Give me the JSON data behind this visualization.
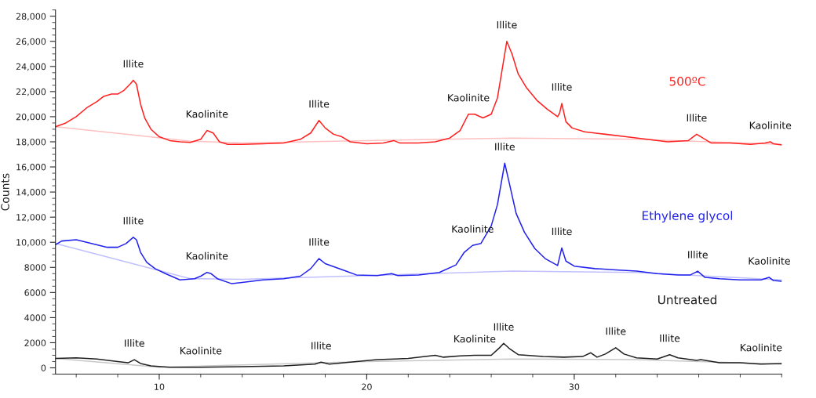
{
  "chart_data": {
    "type": "line",
    "ylabel": "Counts",
    "xlim": [
      5,
      40
    ],
    "xticks": [
      10,
      20,
      30
    ],
    "ylim": [
      -500,
      28500
    ],
    "yticks": [
      0,
      2000,
      4000,
      6000,
      8000,
      {
        "value": 10000,
        "label": "10,000"
      },
      {
        "value": 12000,
        "label": "12,000"
      },
      {
        "value": 14000,
        "label": "14,000"
      },
      {
        "value": 16000,
        "label": "16,000"
      },
      {
        "value": 18000,
        "label": "18,000"
      },
      {
        "value": 20000,
        "label": "20,000"
      },
      {
        "value": 22000,
        "label": "22,000"
      },
      {
        "value": 24000,
        "label": "24,000"
      },
      {
        "value": 26000,
        "label": "26,000"
      },
      {
        "value": 28000,
        "label": "28,000"
      }
    ],
    "grid": false,
    "legend": false,
    "marker": "none",
    "line_style": "solid",
    "series": [
      {
        "color": "#ffc0c0",
        "x": [
          5,
          9,
          11.5,
          14,
          20,
          27,
          33,
          40
        ],
        "values": [
          19200,
          18500,
          18050,
          17900,
          18100,
          18300,
          18200,
          17800
        ]
      },
      {
        "color": "#c0c0ff",
        "x": [
          5,
          11.5,
          14,
          20,
          27,
          33,
          40
        ],
        "values": [
          9900,
          7100,
          7050,
          7350,
          7700,
          7600,
          7000
        ]
      },
      {
        "color": "#c8c8c8",
        "x": [
          5,
          10,
          20,
          27,
          33,
          40
        ],
        "values": [
          750,
          50,
          500,
          700,
          650,
          300
        ]
      },
      {
        "name": "500ºC",
        "color": "#ff2020",
        "x": [
          5.0,
          5.5,
          6.0,
          6.5,
          7.0,
          7.3,
          7.7,
          8.0,
          8.3,
          8.6,
          8.75,
          8.9,
          9.1,
          9.3,
          9.6,
          10.0,
          10.5,
          11.0,
          11.5,
          12.0,
          12.3,
          12.6,
          12.9,
          13.3,
          14,
          15,
          16,
          16.8,
          17.3,
          17.7,
          18.0,
          18.4,
          18.8,
          19.2,
          20,
          20.8,
          21.3,
          21.6,
          22.5,
          23.3,
          24.0,
          24.5,
          24.9,
          25.2,
          25.6,
          26.0,
          26.3,
          26.6,
          26.75,
          27.0,
          27.3,
          27.7,
          28.2,
          28.7,
          29.2,
          29.3,
          29.4,
          29.6,
          29.9,
          30.5,
          31.5,
          32.5,
          33.5,
          34.5,
          35.5,
          35.9,
          36.2,
          36.6,
          37.5,
          38.5,
          39.2,
          39.45,
          39.6,
          40
        ],
        "values": [
          19200,
          19500,
          20000,
          20700,
          21200,
          21600,
          21800,
          21800,
          22100,
          22600,
          22900,
          22600,
          21000,
          19900,
          19000,
          18400,
          18100,
          18000,
          17950,
          18200,
          18900,
          18700,
          18000,
          17800,
          17800,
          17850,
          17900,
          18200,
          18700,
          19700,
          19100,
          18600,
          18400,
          18000,
          17850,
          17900,
          18100,
          17900,
          17900,
          18000,
          18300,
          18900,
          20200,
          20200,
          19900,
          20200,
          21500,
          24500,
          26000,
          25000,
          23400,
          22300,
          21300,
          20600,
          20000,
          20300,
          21050,
          19600,
          19100,
          18800,
          18600,
          18400,
          18200,
          18000,
          18100,
          18600,
          18300,
          17900,
          17900,
          17800,
          17900,
          18000,
          17850,
          17750
        ]
      },
      {
        "name": "Ethylene glycol",
        "color": "#2222ee",
        "x": [
          5.0,
          5.3,
          6.0,
          6.5,
          7.0,
          7.5,
          8.0,
          8.4,
          8.75,
          8.9,
          9.1,
          9.4,
          9.8,
          10.3,
          11,
          11.7,
          12.0,
          12.3,
          12.5,
          12.8,
          13.5,
          14,
          15,
          16,
          16.8,
          17.3,
          17.7,
          18.0,
          18.5,
          19.0,
          19.5,
          20.5,
          21.2,
          21.5,
          22.5,
          23.5,
          24.3,
          24.7,
          25.1,
          25.5,
          26.0,
          26.3,
          26.65,
          26.9,
          27.2,
          27.6,
          28.1,
          28.6,
          29.2,
          29.4,
          29.6,
          30.0,
          31.0,
          32.0,
          33.0,
          34.0,
          35.0,
          35.6,
          35.95,
          36.3,
          37.0,
          38.0,
          39.0,
          39.4,
          39.6,
          40
        ],
        "values": [
          9800,
          10100,
          10200,
          10000,
          9800,
          9600,
          9600,
          9900,
          10400,
          10200,
          9200,
          8400,
          7900,
          7500,
          7000,
          7100,
          7300,
          7600,
          7500,
          7100,
          6700,
          6800,
          7000,
          7100,
          7300,
          7900,
          8700,
          8300,
          8000,
          7700,
          7400,
          7350,
          7500,
          7350,
          7400,
          7600,
          8200,
          9200,
          9750,
          9900,
          11300,
          13000,
          16300,
          14500,
          12300,
          10800,
          9500,
          8700,
          8150,
          9550,
          8500,
          8100,
          7900,
          7800,
          7700,
          7500,
          7400,
          7400,
          7700,
          7200,
          7100,
          7000,
          7000,
          7200,
          6950,
          6900
        ]
      },
      {
        "name": "Untreated",
        "color": "#202020",
        "x": [
          5,
          6,
          7,
          8,
          8.5,
          8.8,
          9.1,
          9.6,
          10.5,
          12,
          14,
          16,
          17.5,
          17.8,
          18.2,
          19.5,
          20.5,
          22,
          23.3,
          23.7,
          24.5,
          25.2,
          26,
          26.4,
          26.6,
          26.9,
          27.3,
          28.5,
          29.5,
          30.4,
          30.8,
          31.1,
          31.5,
          32.0,
          32.4,
          33.0,
          34,
          34.6,
          35.0,
          35.9,
          36.1,
          37,
          38,
          39,
          40
        ],
        "values": [
          750,
          800,
          700,
          500,
          400,
          650,
          350,
          150,
          50,
          50,
          100,
          150,
          300,
          450,
          300,
          500,
          650,
          750,
          1000,
          850,
          950,
          1000,
          1000,
          1600,
          1950,
          1500,
          1050,
          900,
          850,
          900,
          1200,
          850,
          1100,
          1600,
          1100,
          800,
          700,
          1050,
          800,
          600,
          650,
          400,
          400,
          300,
          350
        ]
      }
    ],
    "annotations": [
      {
        "text": "Illite",
        "x": 8.75,
        "y": 22900
      },
      {
        "text": "Kaolinite",
        "x": 12.3,
        "y": 18900
      },
      {
        "text": "Illite",
        "x": 17.7,
        "y": 19700
      },
      {
        "text": "Kaolinite",
        "x": 24.9,
        "y": 20200
      },
      {
        "text": "Illite",
        "x": 26.75,
        "y": 26000
      },
      {
        "text": "Illite",
        "x": 29.4,
        "y": 21050
      },
      {
        "text": "Illite",
        "x": 35.9,
        "y": 18600
      },
      {
        "text": "Kaolinite",
        "x": 39.45,
        "y": 18000
      },
      {
        "text": "Illite",
        "x": 8.75,
        "y": 10400
      },
      {
        "text": "Kaolinite",
        "x": 12.3,
        "y": 7600
      },
      {
        "text": "Illite",
        "x": 17.7,
        "y": 8700
      },
      {
        "text": "Kaolinite",
        "x": 25.1,
        "y": 9750
      },
      {
        "text": "Illite",
        "x": 26.65,
        "y": 16300
      },
      {
        "text": "Illite",
        "x": 29.4,
        "y": 9550
      },
      {
        "text": "Illite",
        "x": 35.95,
        "y": 7700
      },
      {
        "text": "Kaolinite",
        "x": 39.4,
        "y": 7200
      },
      {
        "text": "Illite",
        "x": 8.8,
        "y": 650
      },
      {
        "text": "Kaolinite",
        "x": 12,
        "y": 50
      },
      {
        "text": "Illite",
        "x": 17.8,
        "y": 450
      },
      {
        "text": "Kaolinite",
        "x": 25.2,
        "y": 1000
      },
      {
        "text": "Illite",
        "x": 26.6,
        "y": 1950
      },
      {
        "text": "Illite",
        "x": 32.0,
        "y": 1600
      },
      {
        "text": "Illite",
        "x": 34.6,
        "y": 1050
      },
      {
        "text": "Kaolinite",
        "x": 39,
        "y": 300
      }
    ]
  }
}
